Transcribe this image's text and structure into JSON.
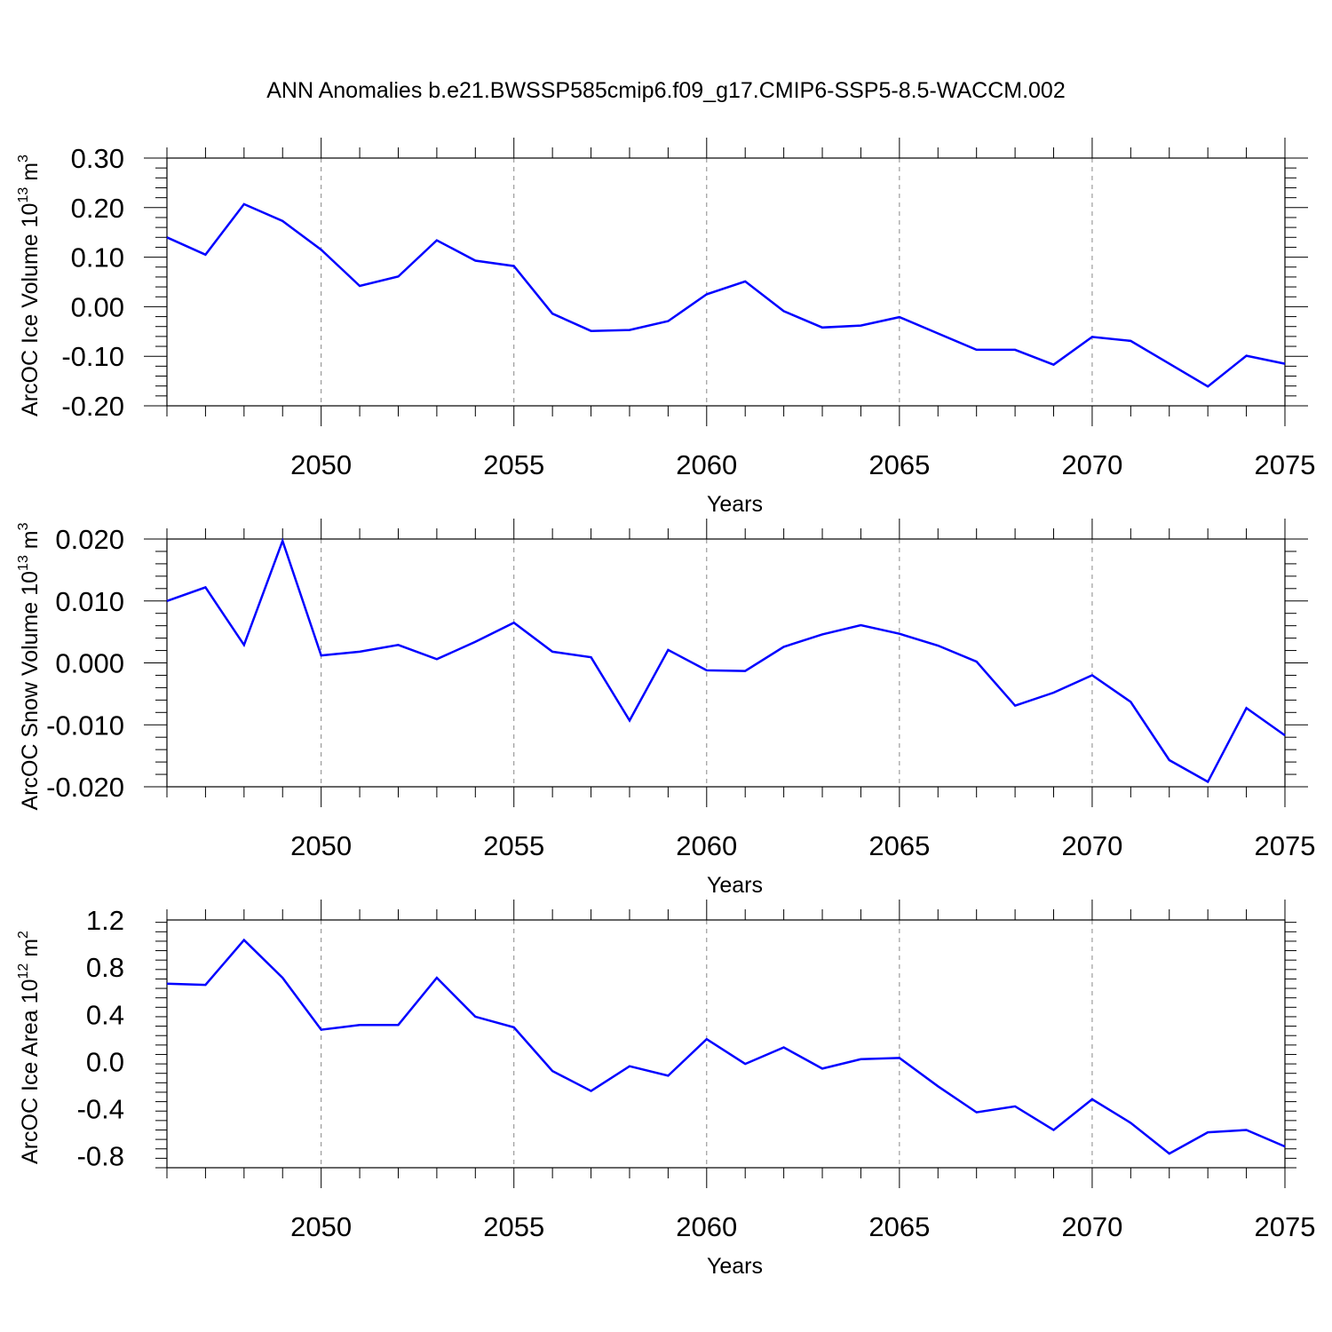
{
  "title": "ANN Anomalies b.e21.BWSSP585cmip6.f09_g17.CMIP6-SSP5-8.5-WACCM.002",
  "line_color": "#0000ff",
  "chart_data": [
    {
      "type": "line",
      "ylabel": "ArcOC Ice Volume 10",
      "ylabel_sup": "13",
      "ylabel_unit": "m",
      "ylabel_unit_sup": "3",
      "xlabel": "Years",
      "x_ticks": [
        2050,
        2055,
        2060,
        2065,
        2070,
        2075
      ],
      "x_tick_labels": [
        "2050",
        "2055",
        "2060",
        "2065",
        "2070",
        "2075"
      ],
      "xlim": [
        2046,
        2075
      ],
      "ylim": [
        -0.2,
        0.3
      ],
      "y_ticks": [
        -0.2,
        -0.1,
        0.0,
        0.1,
        0.2,
        0.3
      ],
      "y_tick_labels": [
        "-0.20",
        "-0.10",
        "0.00",
        "0.10",
        "0.20",
        "0.30"
      ],
      "x": [
        2046,
        2047,
        2048,
        2049,
        2050,
        2051,
        2052,
        2053,
        2054,
        2055,
        2056,
        2057,
        2058,
        2059,
        2060,
        2061,
        2062,
        2063,
        2064,
        2065,
        2066,
        2067,
        2068,
        2069,
        2070,
        2071,
        2072,
        2073,
        2074,
        2075
      ],
      "values": [
        0.14,
        0.105,
        0.207,
        0.173,
        0.115,
        0.042,
        0.061,
        0.134,
        0.093,
        0.082,
        -0.014,
        -0.049,
        -0.047,
        -0.029,
        0.025,
        0.051,
        -0.009,
        -0.042,
        -0.038,
        -0.021,
        -0.054,
        -0.087,
        -0.087,
        -0.117,
        -0.061,
        -0.069,
        -0.115,
        -0.161,
        -0.099,
        -0.115
      ]
    },
    {
      "type": "line",
      "ylabel": "ArcOC Snow Volume 10",
      "ylabel_sup": "13",
      "ylabel_unit": "m",
      "ylabel_unit_sup": "3",
      "xlabel": "Years",
      "x_ticks": [
        2050,
        2055,
        2060,
        2065,
        2070,
        2075
      ],
      "x_tick_labels": [
        "2050",
        "2055",
        "2060",
        "2065",
        "2070",
        "2075"
      ],
      "xlim": [
        2046,
        2075
      ],
      "ylim": [
        -0.02,
        0.02
      ],
      "y_ticks": [
        -0.02,
        -0.01,
        0.0,
        0.01,
        0.02
      ],
      "y_tick_labels": [
        "-0.020",
        "-0.010",
        "0.000",
        "0.010",
        "0.020"
      ],
      "x": [
        2046,
        2047,
        2048,
        2049,
        2050,
        2051,
        2052,
        2053,
        2054,
        2055,
        2056,
        2057,
        2058,
        2059,
        2060,
        2061,
        2062,
        2063,
        2064,
        2065,
        2066,
        2067,
        2068,
        2069,
        2070,
        2071,
        2072,
        2073,
        2074,
        2075
      ],
      "values": [
        0.01,
        0.0122,
        0.0029,
        0.0197,
        0.0012,
        0.0018,
        0.0029,
        0.0006,
        0.0034,
        0.0065,
        0.0018,
        0.0009,
        -0.0093,
        0.0021,
        -0.0012,
        -0.0013,
        0.0026,
        0.0046,
        0.0061,
        0.0047,
        0.0028,
        0.0002,
        -0.0069,
        -0.0048,
        -0.002,
        -0.0063,
        -0.0157,
        -0.0192,
        -0.0073,
        -0.0117
      ]
    },
    {
      "type": "line",
      "ylabel": "ArcOC Ice Area 10",
      "ylabel_sup": "12",
      "ylabel_unit": "m",
      "ylabel_unit_sup": "2",
      "xlabel": "Years",
      "x_ticks": [
        2050,
        2055,
        2060,
        2065,
        2070,
        2075
      ],
      "x_tick_labels": [
        "2050",
        "2055",
        "2060",
        "2065",
        "2070",
        "2075"
      ],
      "xlim": [
        2046,
        2075
      ],
      "ylim": [
        -0.9,
        1.2
      ],
      "y_ticks": [
        -0.8,
        -0.4,
        0.0,
        0.4,
        0.8,
        1.2
      ],
      "y_tick_labels": [
        "-0.8",
        "-0.4",
        "0.0",
        "0.4",
        "0.8",
        "1.2"
      ],
      "x": [
        2046,
        2047,
        2048,
        2049,
        2050,
        2051,
        2052,
        2053,
        2054,
        2055,
        2056,
        2057,
        2058,
        2059,
        2060,
        2061,
        2062,
        2063,
        2064,
        2065,
        2066,
        2067,
        2068,
        2069,
        2070,
        2071,
        2072,
        2073,
        2074,
        2075
      ],
      "values": [
        0.66,
        0.65,
        1.03,
        0.71,
        0.27,
        0.31,
        0.31,
        0.71,
        0.38,
        0.29,
        -0.08,
        -0.25,
        -0.04,
        -0.12,
        0.19,
        -0.02,
        0.12,
        -0.06,
        0.02,
        0.03,
        -0.21,
        -0.43,
        -0.38,
        -0.58,
        -0.32,
        -0.52,
        -0.78,
        -0.6,
        -0.58,
        -0.72
      ]
    }
  ]
}
